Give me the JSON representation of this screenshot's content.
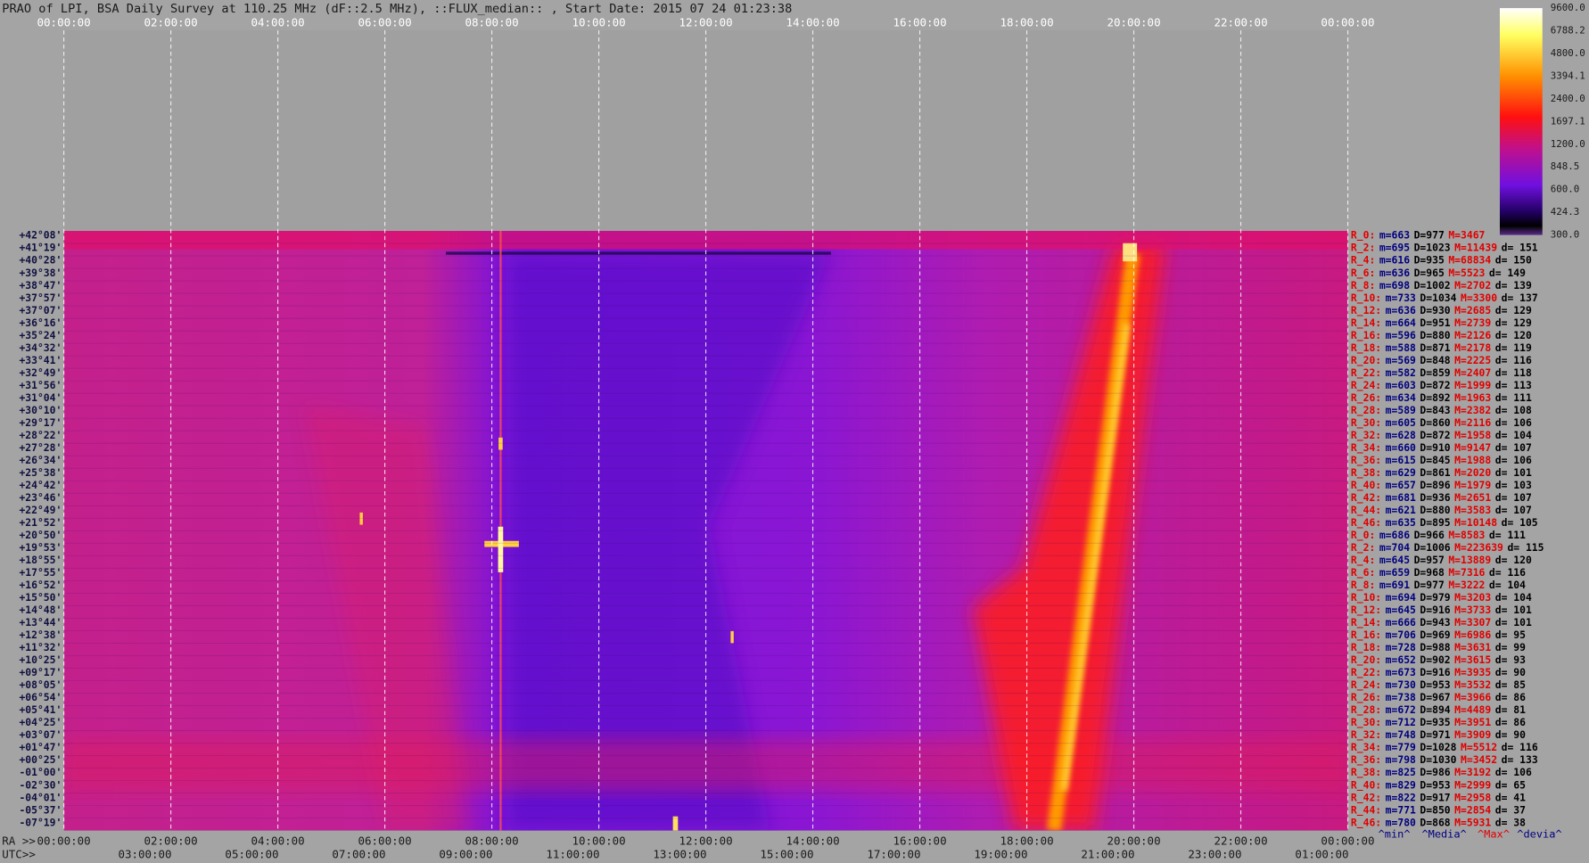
{
  "title": "PRAO of LPI, BSA Daily Survey at 110.25 MHz (dF::2.5 MHz), ::FLUX_median:: , Start Date: 2015 07 24 01:23:38",
  "top_axis": [
    "00:00:00",
    "02:00:00",
    "04:00:00",
    "06:00:00",
    "08:00:00",
    "10:00:00",
    "12:00:00",
    "14:00:00",
    "16:00:00",
    "18:00:00",
    "20:00:00",
    "22:00:00",
    "00:00:00"
  ],
  "ra_axis": {
    "label": "RA >>",
    "ticks": [
      "00:00:00",
      "02:00:00",
      "04:00:00",
      "06:00:00",
      "08:00:00",
      "10:00:00",
      "12:00:00",
      "14:00:00",
      "16:00:00",
      "18:00:00",
      "20:00:00",
      "22:00:00",
      "00:00:00"
    ]
  },
  "utc_axis": {
    "label": "UTC>>",
    "ticks": [
      "03:00:00",
      "05:00:00",
      "07:00:00",
      "09:00:00",
      "11:00:00",
      "13:00:00",
      "15:00:00",
      "17:00:00",
      "19:00:00",
      "21:00:00",
      "23:00:00",
      "01:00:00"
    ]
  },
  "declinations": [
    "+42°08'",
    "+41°19'",
    "+40°28'",
    "+39°38'",
    "+38°47'",
    "+37°57'",
    "+37°07'",
    "+36°16'",
    "+35°24'",
    "+34°32'",
    "+33°41'",
    "+32°49'",
    "+31°56'",
    "+31°04'",
    "+30°10'",
    "+29°17'",
    "+28°22'",
    "+27°28'",
    "+26°34'",
    "+25°38'",
    "+24°42'",
    "+23°46'",
    "+22°49'",
    "+21°52'",
    "+20°50'",
    "+19°53'",
    "+18°55'",
    "+17°55'",
    "+16°52'",
    "+15°50'",
    "+14°48'",
    "+13°44'",
    "+12°38'",
    "+11°32'",
    "+10°25'",
    "+09°17'",
    "+08°05'",
    "+06°54'",
    "+05°41'",
    "+04°25'",
    "+03°07'",
    "+01°47'",
    "+00°25'",
    "-01°00'",
    "-02°30'",
    "-04°01'",
    "-05°37'",
    "-07°19'"
  ],
  "colorbar": [
    "9600.0",
    "6788.2",
    "4800.0",
    "3394.1",
    "2400.0",
    "1697.1",
    "1200.0",
    "848.5",
    "600.0",
    "424.3",
    "300.0"
  ],
  "stats": [
    [
      "R_0:",
      "m=663",
      "D=977",
      "M=3467"
    ],
    [
      "R_2:",
      "m=695",
      "D=1023",
      "M=11439",
      "d= 151"
    ],
    [
      "R_4:",
      "m=616",
      "D=935",
      "M=68834",
      "d= 150"
    ],
    [
      "R_6:",
      "m=636",
      "D=965",
      "M=5523",
      "d= 149"
    ],
    [
      "R_8:",
      "m=698",
      "D=1002",
      "M=2702",
      "d= 139"
    ],
    [
      "R_10:",
      "m=733",
      "D=1034",
      "M=3300",
      "d= 137"
    ],
    [
      "R_12:",
      "m=636",
      "D=930",
      "M=2685",
      "d= 129"
    ],
    [
      "R_14:",
      "m=664",
      "D=951",
      "M=2739",
      "d= 129"
    ],
    [
      "R_16:",
      "m=596",
      "D=880",
      "M=2126",
      "d= 120"
    ],
    [
      "R_18:",
      "m=588",
      "D=871",
      "M=2178",
      "d= 119"
    ],
    [
      "R_20:",
      "m=569",
      "D=848",
      "M=2225",
      "d= 116"
    ],
    [
      "R_22:",
      "m=582",
      "D=859",
      "M=2407",
      "d= 118"
    ],
    [
      "R_24:",
      "m=603",
      "D=872",
      "M=1999",
      "d= 113"
    ],
    [
      "R_26:",
      "m=634",
      "D=892",
      "M=1963",
      "d= 111"
    ],
    [
      "R_28:",
      "m=589",
      "D=843",
      "M=2382",
      "d= 108"
    ],
    [
      "R_30:",
      "m=605",
      "D=860",
      "M=2116",
      "d= 106"
    ],
    [
      "R_32:",
      "m=628",
      "D=872",
      "M=1958",
      "d= 104"
    ],
    [
      "R_34:",
      "m=660",
      "D=910",
      "M=9147",
      "d= 107"
    ],
    [
      "R_36:",
      "m=615",
      "D=845",
      "M=1988",
      "d= 106"
    ],
    [
      "R_38:",
      "m=629",
      "D=861",
      "M=2020",
      "d= 101"
    ],
    [
      "R_40:",
      "m=657",
      "D=896",
      "M=1979",
      "d= 103"
    ],
    [
      "R_42:",
      "m=681",
      "D=936",
      "M=2651",
      "d= 107"
    ],
    [
      "R_44:",
      "m=621",
      "D=880",
      "M=3583",
      "d= 107"
    ],
    [
      "R_46:",
      "m=635",
      "D=895",
      "M=10148",
      "d= 105"
    ],
    [
      "R_0:",
      "m=686",
      "D=966",
      "M=8583",
      "d= 111"
    ],
    [
      "R_2:",
      "m=704",
      "D=1006",
      "M=223639",
      "d= 115"
    ],
    [
      "R_4:",
      "m=645",
      "D=957",
      "M=13889",
      "d= 120"
    ],
    [
      "R_6:",
      "m=659",
      "D=968",
      "M=7316",
      "d= 116"
    ],
    [
      "R_8:",
      "m=691",
      "D=977",
      "M=3222",
      "d= 104"
    ],
    [
      "R_10:",
      "m=694",
      "D=979",
      "M=3203",
      "d= 104"
    ],
    [
      "R_12:",
      "m=645",
      "D=916",
      "M=3733",
      "d= 101"
    ],
    [
      "R_14:",
      "m=666",
      "D=943",
      "M=3307",
      "d= 101"
    ],
    [
      "R_16:",
      "m=706",
      "D=969",
      "M=6986",
      "d= 95"
    ],
    [
      "R_18:",
      "m=728",
      "D=988",
      "M=3631",
      "d= 99"
    ],
    [
      "R_20:",
      "m=652",
      "D=902",
      "M=3615",
      "d= 93"
    ],
    [
      "R_22:",
      "m=673",
      "D=916",
      "M=3935",
      "d= 90"
    ],
    [
      "R_24:",
      "m=730",
      "D=953",
      "M=3532",
      "d= 85"
    ],
    [
      "R_26:",
      "m=738",
      "D=967",
      "M=3966",
      "d= 86"
    ],
    [
      "R_28:",
      "m=672",
      "D=894",
      "M=4489",
      "d= 81"
    ],
    [
      "R_30:",
      "m=712",
      "D=935",
      "M=3951",
      "d= 86"
    ],
    [
      "R_32:",
      "m=748",
      "D=971",
      "M=3909",
      "d= 90"
    ],
    [
      "R_34:",
      "m=779",
      "D=1028",
      "M=5512",
      "d= 116"
    ],
    [
      "R_36:",
      "m=798",
      "D=1030",
      "M=3452",
      "d= 133"
    ],
    [
      "R_38:",
      "m=825",
      "D=986",
      "M=3192",
      "d= 106"
    ],
    [
      "R_40:",
      "m=829",
      "D=953",
      "M=2999",
      "d= 65"
    ],
    [
      "R_42:",
      "m=822",
      "D=917",
      "M=2958",
      "d= 41"
    ],
    [
      "R_44:",
      "m=771",
      "D=850",
      "M=2854",
      "d= 37"
    ],
    [
      "R_46:",
      "m=780",
      "D=868",
      "M=5931",
      "d= 38"
    ]
  ],
  "stats_legend": [
    "^min^",
    "^Media^",
    "^Max^",
    "^devia^"
  ]
}
